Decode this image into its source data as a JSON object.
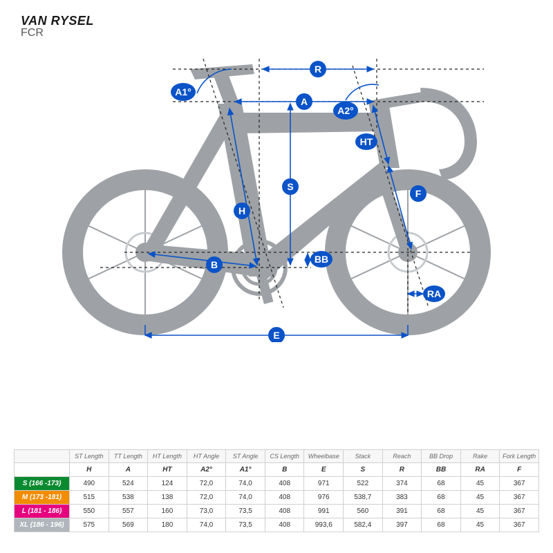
{
  "header": {
    "brand": "VAN RYSEL",
    "model": "FCR"
  },
  "colors": {
    "bike_silhouette": "#9ea2a6",
    "measure_line": "#0a53c8",
    "dash_line": "#222222",
    "label_fill": "#0a53c8",
    "label_text": "#ffffff",
    "table_border": "#d0d0d0",
    "table_header_bg": "#f7f7f7",
    "page_bg": "#ffffff"
  },
  "diagram_labels": {
    "A1": "A1°",
    "A2": "A2°",
    "R": "R",
    "A": "A",
    "HT": "HT",
    "S": "S",
    "H": "H",
    "F": "F",
    "BB": "BB",
    "B": "B",
    "RA": "RA",
    "E": "E"
  },
  "table": {
    "columns": [
      {
        "name": "ST Length",
        "sym": "H"
      },
      {
        "name": "TT Length",
        "sym": "A"
      },
      {
        "name": "HT Length",
        "sym": "HT"
      },
      {
        "name": "HT Angle",
        "sym": "A2°"
      },
      {
        "name": "ST Angle",
        "sym": "A1°"
      },
      {
        "name": "CS Length",
        "sym": "B"
      },
      {
        "name": "Wheelbase",
        "sym": "E"
      },
      {
        "name": "Stack",
        "sym": "S"
      },
      {
        "name": "Reach",
        "sym": "R"
      },
      {
        "name": "BB Drop",
        "sym": "BB"
      },
      {
        "name": "Rake",
        "sym": "RA"
      },
      {
        "name": "Fork Length",
        "sym": "F"
      }
    ],
    "rows": [
      {
        "label": "S (166 -173)",
        "color": "#0a8a2f",
        "vals": [
          "490",
          "524",
          "124",
          "72,0",
          "74,0",
          "408",
          "971",
          "522",
          "374",
          "68",
          "45",
          "367"
        ]
      },
      {
        "label": "M (173 -181)",
        "color": "#f28c00",
        "vals": [
          "515",
          "538",
          "138",
          "72,0",
          "74,0",
          "408",
          "976",
          "538,7",
          "383",
          "68",
          "45",
          "367"
        ]
      },
      {
        "label": "L (181 - 186)",
        "color": "#e6007e",
        "vals": [
          "550",
          "557",
          "160",
          "73,0",
          "73,5",
          "408",
          "991",
          "560",
          "391",
          "68",
          "45",
          "367"
        ]
      },
      {
        "label": "XL (186 - 196)",
        "color": "#b0b6bc",
        "vals": [
          "575",
          "569",
          "180",
          "74,0",
          "73,5",
          "408",
          "993,6",
          "582,4",
          "397",
          "68",
          "45",
          "367"
        ]
      }
    ]
  }
}
